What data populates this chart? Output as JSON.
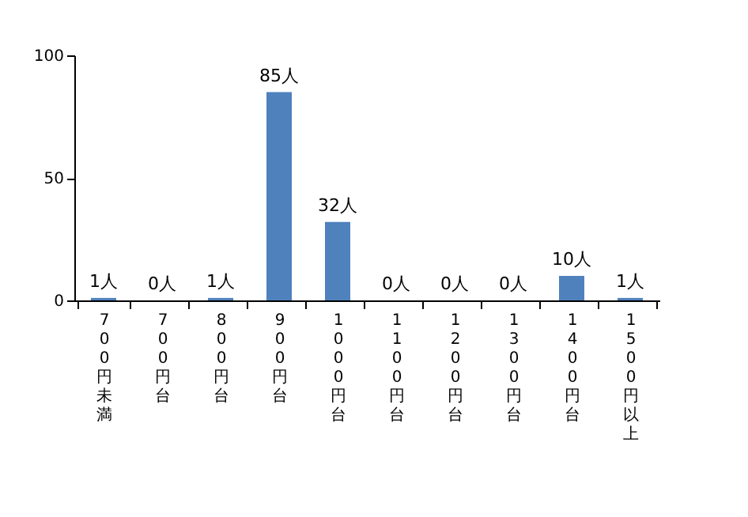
{
  "chart_data": {
    "type": "bar",
    "categories": [
      "700円未満",
      "700円台",
      "800円台",
      "900円台",
      "1000円台",
      "1100円台",
      "1200円台",
      "1300円台",
      "1400円台",
      "1500円以上"
    ],
    "values": [
      1,
      0,
      1,
      85,
      32,
      0,
      0,
      0,
      10,
      1
    ],
    "value_labels": [
      "1人",
      "0人",
      "1人",
      "85人",
      "32人",
      "0人",
      "0人",
      "0人",
      "10人",
      "1人"
    ],
    "color": "#4f81bd",
    "ylim": [
      0,
      100
    ],
    "yticks": [
      0,
      50,
      100
    ],
    "grid": false
  }
}
